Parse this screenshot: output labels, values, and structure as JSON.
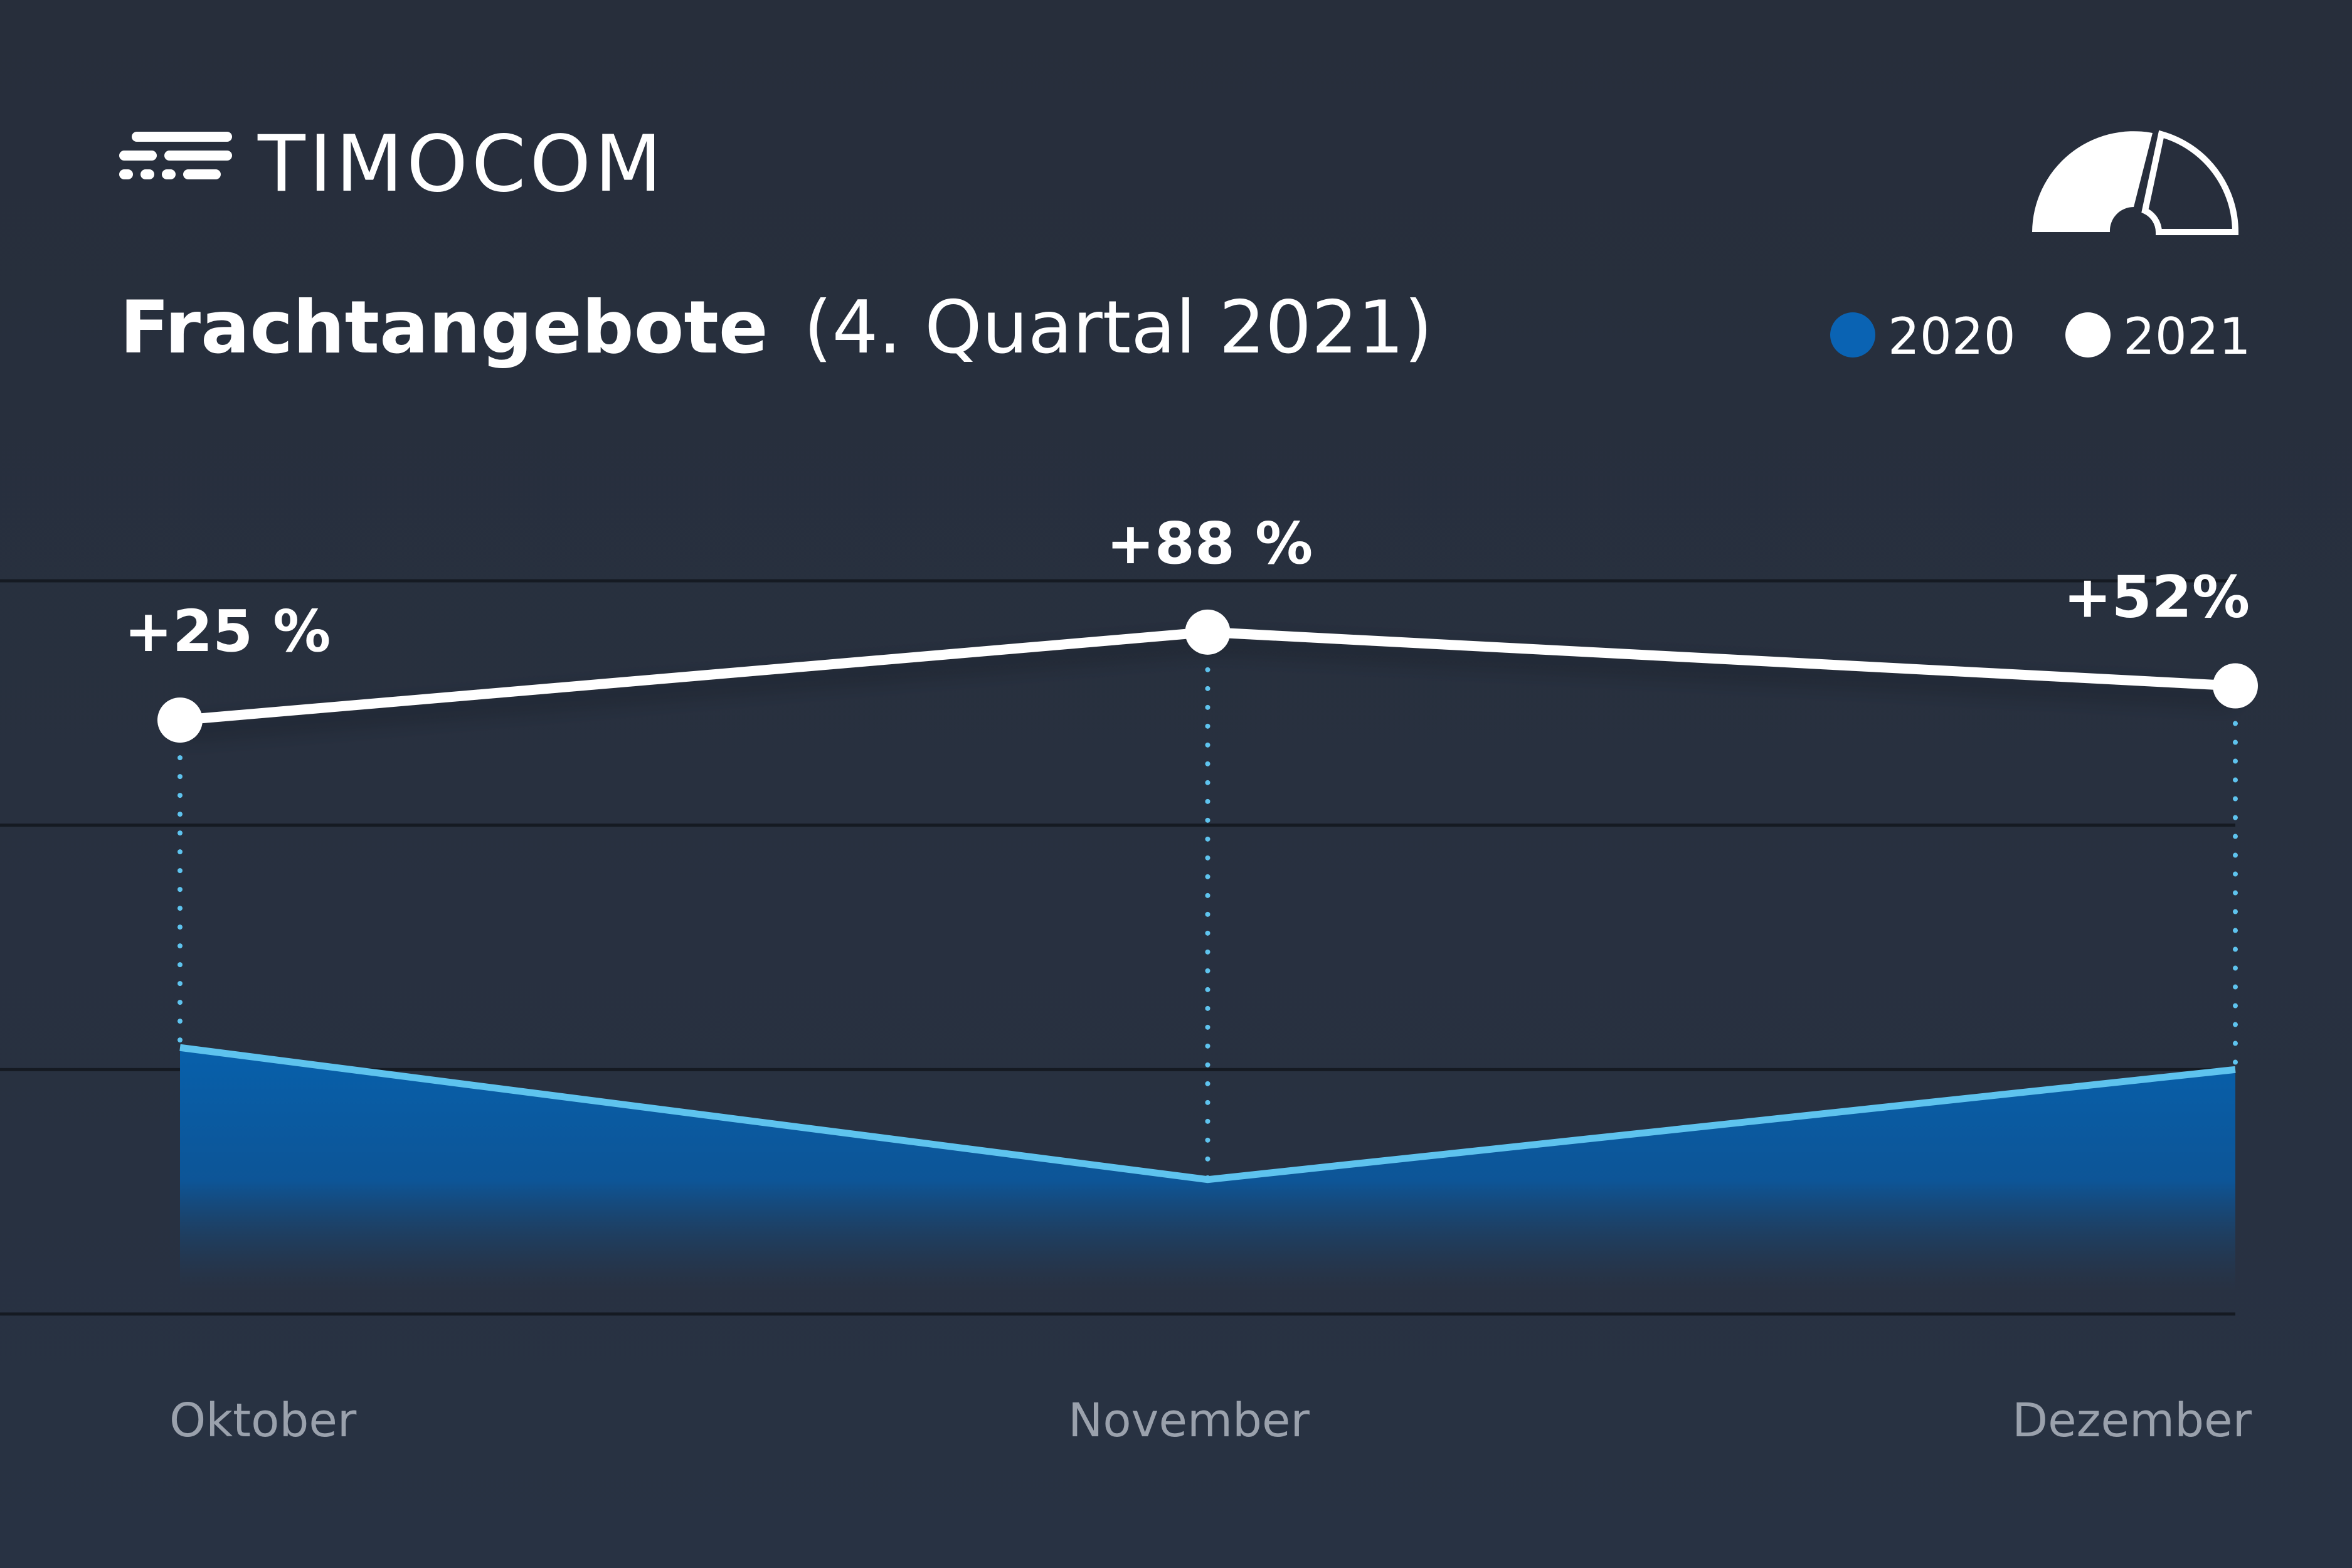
{
  "brand": "TIMOCOM",
  "chart_data": {
    "type": "line-area",
    "title": "Frachtangebote",
    "subtitle": "(4. Quartal 2021)",
    "categories": [
      "Oktober",
      "November",
      "Dezember"
    ],
    "series": [
      {
        "name": "2020",
        "color": "#0a63b3",
        "line_color": "#5ec3ee",
        "values": [
          1.09,
          0.55,
          1.0
        ]
      },
      {
        "name": "2021",
        "color": "#ffffff",
        "values": [
          2.43,
          2.79,
          2.57
        ]
      }
    ],
    "annotations": [
      "+25 %",
      "+88 %",
      "+52%"
    ],
    "ylim": [
      0,
      3
    ],
    "yticks": [
      0,
      1,
      2,
      3
    ],
    "grid": true,
    "legend": "top-right"
  }
}
